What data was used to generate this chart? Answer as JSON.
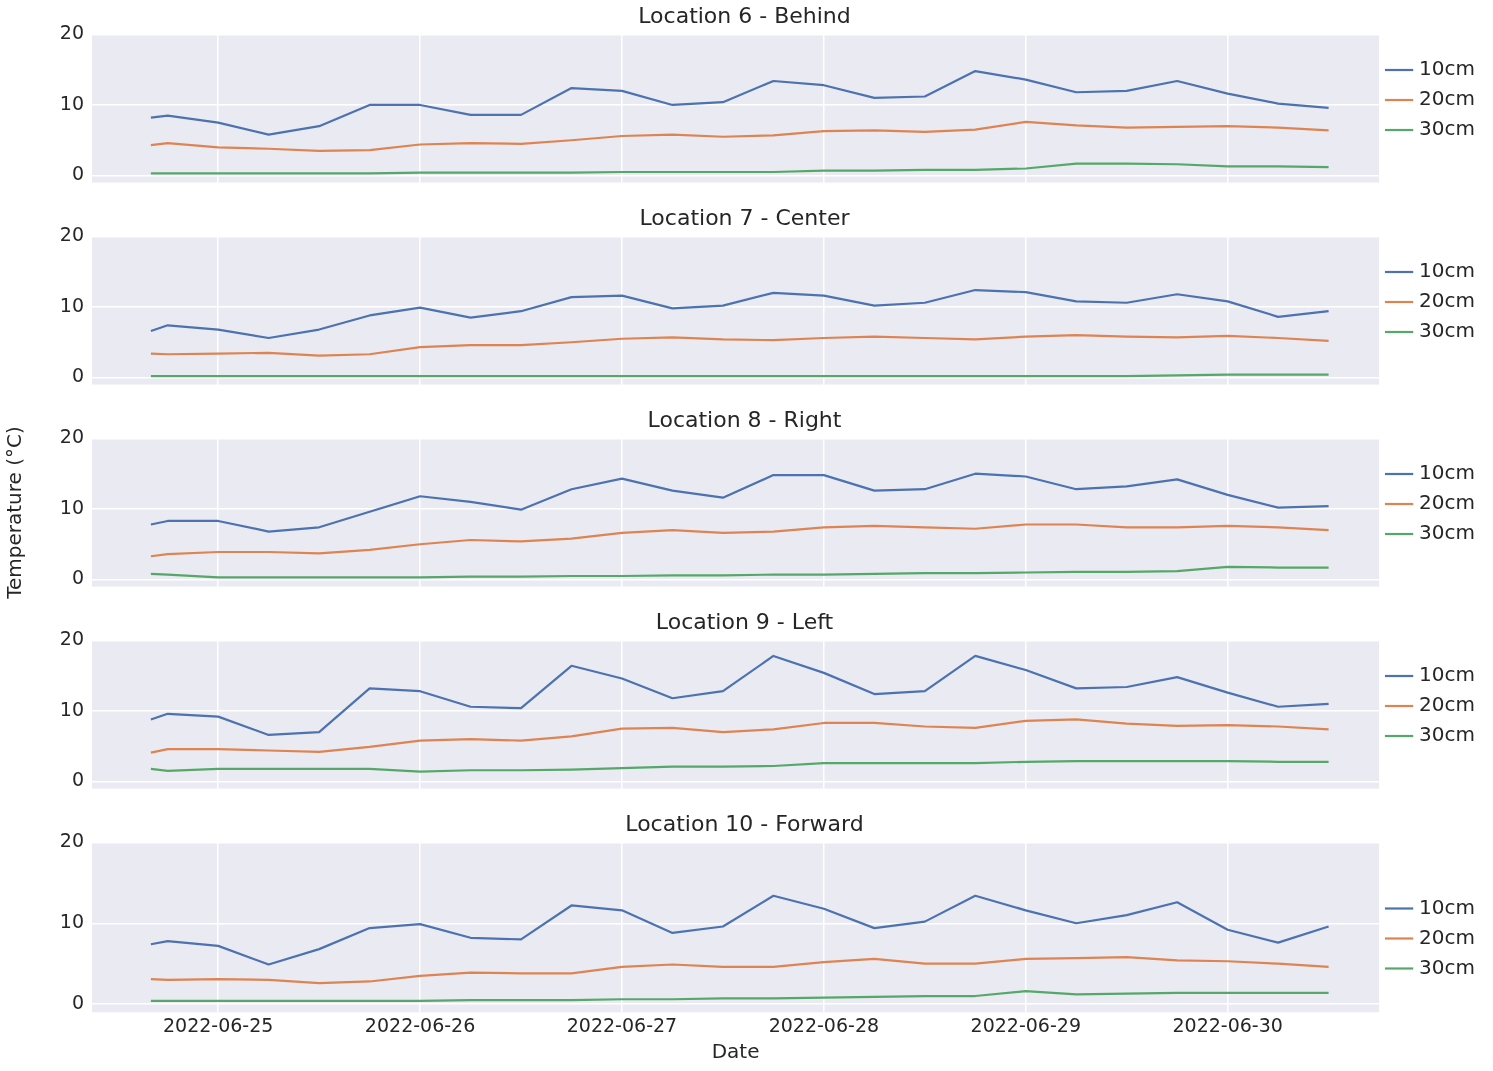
{
  "chart_data": [
    {
      "type": "line",
      "title": "Location 6 - Behind",
      "x": [
        "2022-06-24T16:00",
        "2022-06-24T18:00",
        "2022-06-25T00:00",
        "2022-06-25T06:00",
        "2022-06-25T12:00",
        "2022-06-25T18:00",
        "2022-06-26T00:00",
        "2022-06-26T06:00",
        "2022-06-26T12:00",
        "2022-06-26T18:00",
        "2022-06-27T00:00",
        "2022-06-27T06:00",
        "2022-06-27T12:00",
        "2022-06-27T18:00",
        "2022-06-28T00:00",
        "2022-06-28T06:00",
        "2022-06-28T12:00",
        "2022-06-28T18:00",
        "2022-06-29T00:00",
        "2022-06-29T06:00",
        "2022-06-29T12:00",
        "2022-06-29T18:00",
        "2022-06-30T00:00",
        "2022-06-30T06:00",
        "2022-06-30T12:00"
      ],
      "series": [
        {
          "name": "10cm",
          "color": "#4c72b0",
          "values": [
            8.2,
            8.5,
            7.5,
            5.8,
            7.0,
            10.0,
            10.0,
            8.6,
            8.6,
            12.4,
            12.0,
            10.0,
            10.4,
            13.4,
            12.8,
            11.0,
            11.2,
            14.8,
            13.6,
            11.8,
            12.0,
            13.4,
            11.6,
            10.2,
            9.6
          ]
        },
        {
          "name": "20cm",
          "color": "#dd8452",
          "values": [
            4.3,
            4.6,
            4.0,
            3.8,
            3.5,
            3.6,
            4.4,
            4.6,
            4.5,
            5.0,
            5.6,
            5.8,
            5.5,
            5.7,
            6.3,
            6.4,
            6.2,
            6.5,
            7.6,
            7.1,
            6.8,
            6.9,
            7.0,
            6.8,
            6.4
          ]
        },
        {
          "name": "30cm",
          "color": "#55a868",
          "values": [
            0.3,
            0.3,
            0.3,
            0.3,
            0.3,
            0.3,
            0.4,
            0.4,
            0.4,
            0.4,
            0.5,
            0.5,
            0.5,
            0.5,
            0.7,
            0.7,
            0.8,
            0.8,
            1.0,
            1.7,
            1.7,
            1.6,
            1.3,
            1.3,
            1.2
          ]
        }
      ],
      "xlim": [
        "2022-06-24T09:00",
        "2022-06-30T18:00"
      ],
      "xticks": [
        "2022-06-25",
        "2022-06-26",
        "2022-06-27",
        "2022-06-28",
        "2022-06-29",
        "2022-06-30"
      ],
      "ylim": [
        -1,
        20
      ],
      "yticks": [
        0,
        10,
        20
      ],
      "grid": true,
      "legend": "right",
      "tick_labels": "y"
    },
    {
      "type": "line",
      "title": "Location 7 - Center",
      "x": [
        "2022-06-24T16:00",
        "2022-06-24T18:00",
        "2022-06-25T00:00",
        "2022-06-25T06:00",
        "2022-06-25T12:00",
        "2022-06-25T18:00",
        "2022-06-26T00:00",
        "2022-06-26T06:00",
        "2022-06-26T12:00",
        "2022-06-26T18:00",
        "2022-06-27T00:00",
        "2022-06-27T06:00",
        "2022-06-27T12:00",
        "2022-06-27T18:00",
        "2022-06-28T00:00",
        "2022-06-28T06:00",
        "2022-06-28T12:00",
        "2022-06-28T18:00",
        "2022-06-29T00:00",
        "2022-06-29T06:00",
        "2022-06-29T12:00",
        "2022-06-29T18:00",
        "2022-06-30T00:00",
        "2022-06-30T06:00",
        "2022-06-30T12:00"
      ],
      "series": [
        {
          "name": "10cm",
          "color": "#4c72b0",
          "values": [
            6.6,
            7.4,
            6.8,
            5.6,
            6.8,
            8.8,
            9.9,
            8.5,
            9.4,
            11.4,
            11.6,
            9.8,
            10.2,
            12.0,
            11.6,
            10.2,
            10.6,
            12.4,
            12.1,
            10.8,
            10.6,
            11.8,
            10.8,
            8.6,
            9.4
          ]
        },
        {
          "name": "20cm",
          "color": "#dd8452",
          "values": [
            3.4,
            3.3,
            3.4,
            3.5,
            3.1,
            3.3,
            4.3,
            4.6,
            4.6,
            5.0,
            5.5,
            5.7,
            5.4,
            5.3,
            5.6,
            5.8,
            5.6,
            5.4,
            5.8,
            6.0,
            5.8,
            5.7,
            5.9,
            5.6,
            5.2
          ]
        },
        {
          "name": "30cm",
          "color": "#55a868",
          "values": [
            0.2,
            0.2,
            0.2,
            0.2,
            0.2,
            0.2,
            0.2,
            0.2,
            0.2,
            0.2,
            0.2,
            0.2,
            0.2,
            0.2,
            0.2,
            0.2,
            0.2,
            0.2,
            0.2,
            0.2,
            0.2,
            0.3,
            0.4,
            0.4,
            0.4
          ]
        }
      ],
      "xlim": [
        "2022-06-24T09:00",
        "2022-06-30T18:00"
      ],
      "xticks": [
        "2022-06-25",
        "2022-06-26",
        "2022-06-27",
        "2022-06-28",
        "2022-06-29",
        "2022-06-30"
      ],
      "ylim": [
        -1,
        20
      ],
      "yticks": [
        0,
        10,
        20
      ],
      "grid": true,
      "legend": "right",
      "tick_labels": "y"
    },
    {
      "type": "line",
      "title": "Location 8 - Right",
      "ylabel": "Temperature (°C)",
      "x": [
        "2022-06-24T16:00",
        "2022-06-24T18:00",
        "2022-06-25T00:00",
        "2022-06-25T06:00",
        "2022-06-25T12:00",
        "2022-06-25T18:00",
        "2022-06-26T00:00",
        "2022-06-26T06:00",
        "2022-06-26T12:00",
        "2022-06-26T18:00",
        "2022-06-27T00:00",
        "2022-06-27T06:00",
        "2022-06-27T12:00",
        "2022-06-27T18:00",
        "2022-06-28T00:00",
        "2022-06-28T06:00",
        "2022-06-28T12:00",
        "2022-06-28T18:00",
        "2022-06-29T00:00",
        "2022-06-29T06:00",
        "2022-06-29T12:00",
        "2022-06-29T18:00",
        "2022-06-30T00:00",
        "2022-06-30T06:00",
        "2022-06-30T12:00"
      ],
      "series": [
        {
          "name": "10cm",
          "color": "#4c72b0",
          "values": [
            7.8,
            8.3,
            8.3,
            6.8,
            7.4,
            9.6,
            11.8,
            11.0,
            9.9,
            12.8,
            14.3,
            12.6,
            11.6,
            14.8,
            14.8,
            12.6,
            12.8,
            15.0,
            14.6,
            12.8,
            13.2,
            14.2,
            12.0,
            10.2,
            10.4
          ]
        },
        {
          "name": "20cm",
          "color": "#dd8452",
          "values": [
            3.3,
            3.6,
            3.9,
            3.9,
            3.7,
            4.2,
            5.0,
            5.6,
            5.4,
            5.8,
            6.6,
            7.0,
            6.6,
            6.8,
            7.4,
            7.6,
            7.4,
            7.2,
            7.8,
            7.8,
            7.4,
            7.4,
            7.6,
            7.4,
            7.0
          ]
        },
        {
          "name": "30cm",
          "color": "#55a868",
          "values": [
            0.8,
            0.7,
            0.3,
            0.3,
            0.3,
            0.3,
            0.3,
            0.4,
            0.4,
            0.5,
            0.5,
            0.6,
            0.6,
            0.7,
            0.7,
            0.8,
            0.9,
            0.9,
            1.0,
            1.1,
            1.1,
            1.2,
            1.8,
            1.7,
            1.7
          ]
        }
      ],
      "xlim": [
        "2022-06-24T09:00",
        "2022-06-30T18:00"
      ],
      "xticks": [
        "2022-06-25",
        "2022-06-26",
        "2022-06-27",
        "2022-06-28",
        "2022-06-29",
        "2022-06-30"
      ],
      "ylim": [
        -1,
        20
      ],
      "yticks": [
        0,
        10,
        20
      ],
      "grid": true,
      "legend": "right",
      "tick_labels": "y"
    },
    {
      "type": "line",
      "title": "Location 9 - Left",
      "x": [
        "2022-06-24T16:00",
        "2022-06-24T18:00",
        "2022-06-25T00:00",
        "2022-06-25T06:00",
        "2022-06-25T12:00",
        "2022-06-25T18:00",
        "2022-06-26T00:00",
        "2022-06-26T06:00",
        "2022-06-26T12:00",
        "2022-06-26T18:00",
        "2022-06-27T00:00",
        "2022-06-27T06:00",
        "2022-06-27T12:00",
        "2022-06-27T18:00",
        "2022-06-28T00:00",
        "2022-06-28T06:00",
        "2022-06-28T12:00",
        "2022-06-28T18:00",
        "2022-06-29T00:00",
        "2022-06-29T06:00",
        "2022-06-29T12:00",
        "2022-06-29T18:00",
        "2022-06-30T00:00",
        "2022-06-30T06:00",
        "2022-06-30T12:00"
      ],
      "series": [
        {
          "name": "10cm",
          "color": "#4c72b0",
          "values": [
            8.8,
            9.6,
            9.2,
            6.6,
            7.0,
            13.2,
            12.8,
            10.6,
            10.4,
            16.4,
            14.6,
            11.8,
            12.8,
            17.8,
            15.4,
            12.4,
            12.8,
            17.8,
            15.8,
            13.2,
            13.4,
            14.8,
            12.6,
            10.6,
            11.0
          ]
        },
        {
          "name": "20cm",
          "color": "#dd8452",
          "values": [
            4.1,
            4.6,
            4.6,
            4.4,
            4.2,
            4.9,
            5.8,
            6.0,
            5.8,
            6.4,
            7.5,
            7.6,
            7.0,
            7.4,
            8.3,
            8.3,
            7.8,
            7.6,
            8.6,
            8.8,
            8.2,
            7.9,
            8.0,
            7.8,
            7.4
          ]
        },
        {
          "name": "30cm",
          "color": "#55a868",
          "values": [
            1.8,
            1.5,
            1.8,
            1.8,
            1.8,
            1.8,
            1.4,
            1.6,
            1.6,
            1.7,
            1.9,
            2.1,
            2.1,
            2.2,
            2.6,
            2.6,
            2.6,
            2.6,
            2.8,
            2.9,
            2.9,
            2.9,
            2.9,
            2.8,
            2.8
          ]
        }
      ],
      "xlim": [
        "2022-06-24T09:00",
        "2022-06-30T18:00"
      ],
      "xticks": [
        "2022-06-25",
        "2022-06-26",
        "2022-06-27",
        "2022-06-28",
        "2022-06-29",
        "2022-06-30"
      ],
      "ylim": [
        -1,
        20
      ],
      "yticks": [
        0,
        10,
        20
      ],
      "grid": true,
      "legend": "right",
      "tick_labels": "y"
    },
    {
      "type": "line",
      "title": "Location 10 - Forward",
      "xlabel": "Date",
      "x": [
        "2022-06-24T16:00",
        "2022-06-24T18:00",
        "2022-06-25T00:00",
        "2022-06-25T06:00",
        "2022-06-25T12:00",
        "2022-06-25T18:00",
        "2022-06-26T00:00",
        "2022-06-26T06:00",
        "2022-06-26T12:00",
        "2022-06-26T18:00",
        "2022-06-27T00:00",
        "2022-06-27T06:00",
        "2022-06-27T12:00",
        "2022-06-27T18:00",
        "2022-06-28T00:00",
        "2022-06-28T06:00",
        "2022-06-28T12:00",
        "2022-06-28T18:00",
        "2022-06-29T00:00",
        "2022-06-29T06:00",
        "2022-06-29T12:00",
        "2022-06-29T18:00",
        "2022-06-30T00:00",
        "2022-06-30T06:00",
        "2022-06-30T12:00"
      ],
      "series": [
        {
          "name": "10cm",
          "color": "#4c72b0",
          "values": [
            7.4,
            7.8,
            7.2,
            4.9,
            6.8,
            9.4,
            9.9,
            8.2,
            8.0,
            12.2,
            11.6,
            8.8,
            9.6,
            13.4,
            11.8,
            9.4,
            10.2,
            13.4,
            11.6,
            10.0,
            11.0,
            12.6,
            9.2,
            7.6,
            9.6
          ]
        },
        {
          "name": "20cm",
          "color": "#dd8452",
          "values": [
            3.1,
            3.0,
            3.1,
            3.0,
            2.6,
            2.8,
            3.5,
            3.9,
            3.8,
            3.8,
            4.6,
            4.9,
            4.6,
            4.6,
            5.2,
            5.6,
            5.0,
            5.0,
            5.6,
            5.7,
            5.8,
            5.4,
            5.3,
            5.0,
            4.6
          ]
        },
        {
          "name": "30cm",
          "color": "#55a868",
          "values": [
            0.4,
            0.4,
            0.4,
            0.4,
            0.4,
            0.4,
            0.4,
            0.5,
            0.5,
            0.5,
            0.6,
            0.6,
            0.7,
            0.7,
            0.8,
            0.9,
            1.0,
            1.0,
            1.6,
            1.2,
            1.3,
            1.4,
            1.4,
            1.4,
            1.4
          ]
        }
      ],
      "xlim": [
        "2022-06-24T09:00",
        "2022-06-30T18:00"
      ],
      "xticks": [
        "2022-06-25",
        "2022-06-26",
        "2022-06-27",
        "2022-06-28",
        "2022-06-29",
        "2022-06-30"
      ],
      "ylim": [
        -1,
        20
      ],
      "yticks": [
        0,
        10,
        20
      ],
      "grid": true,
      "legend": "right"
    }
  ]
}
